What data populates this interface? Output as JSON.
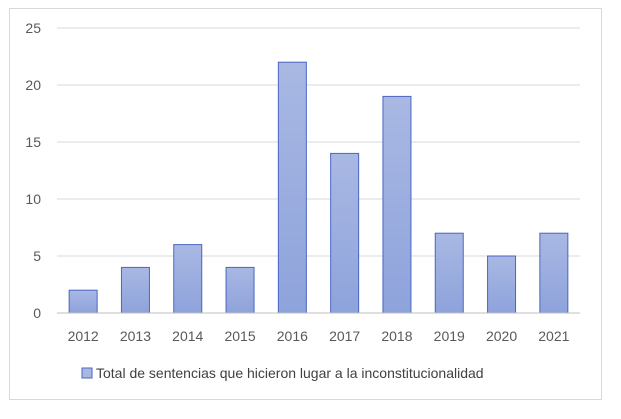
{
  "chart_data": {
    "type": "bar",
    "title": "",
    "xlabel": "",
    "ylabel": "",
    "categories": [
      "2012",
      "2013",
      "2014",
      "2015",
      "2016",
      "2017",
      "2018",
      "2019",
      "2020",
      "2021"
    ],
    "series": [
      {
        "name": "Total de sentencias que hicieron lugar a la inconstitucionalidad",
        "values": [
          2,
          4,
          6,
          4,
          22,
          14,
          19,
          7,
          5,
          7
        ]
      }
    ],
    "ylim": [
      0,
      25
    ],
    "yticks": [
      "0",
      "5",
      "10",
      "15",
      "20",
      "25"
    ],
    "grid": true,
    "legend_position": "bottom",
    "colors": {
      "bar_fill_top": "#a9b8e3",
      "bar_fill_bottom": "#8ea3dc",
      "bar_stroke": "#4a66c2",
      "gridline": "#d9d9d9",
      "axis": "#bfbfbf"
    }
  }
}
